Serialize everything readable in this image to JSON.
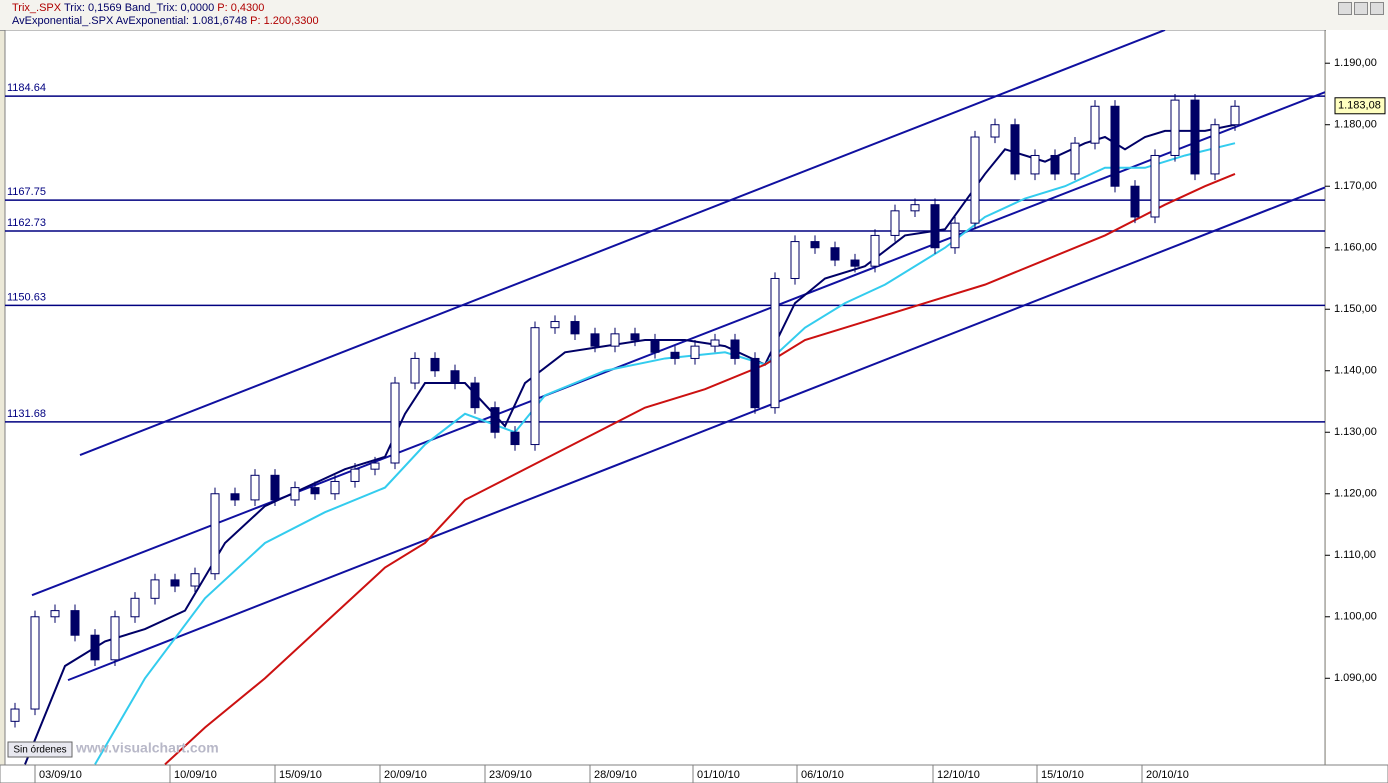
{
  "window": {
    "line1": [
      "Trix_.SPX",
      "Trix: 0,1569",
      "Band_Trix: 0,0000",
      "P: 0,4300"
    ],
    "line2": [
      "AvExponential_.SPX",
      "AvExponential: 1.081,6748",
      "P: 1.200,3300"
    ],
    "status": "Sin órdenes",
    "watermark": "www.visualchart.com"
  },
  "chart_data": {
    "type": "candlestick",
    "xlim": [
      0,
      1320
    ],
    "ylim": [
      1075.9,
      1195.4
    ],
    "xticks": [
      {
        "value": 30,
        "label": "03/09/10"
      },
      {
        "value": 165,
        "label": "10/09/10"
      },
      {
        "value": 270,
        "label": "15/09/10"
      },
      {
        "value": 375,
        "label": "20/09/10"
      },
      {
        "value": 480,
        "label": "23/09/10"
      },
      {
        "value": 585,
        "label": "28/09/10"
      },
      {
        "value": 688,
        "label": "01/10/10"
      },
      {
        "value": 792,
        "label": "06/10/10"
      },
      {
        "value": 928,
        "label": "12/10/10"
      },
      {
        "value": 1032,
        "label": "15/10/10"
      },
      {
        "value": 1137,
        "label": "20/10/10"
      }
    ],
    "yticks": [
      {
        "value": 1090,
        "label": "1.090,00"
      },
      {
        "value": 1100,
        "label": "1.100,00"
      },
      {
        "value": 1110,
        "label": "1.110,00"
      },
      {
        "value": 1120,
        "label": "1.120,00"
      },
      {
        "value": 1130,
        "label": "1.130,00"
      },
      {
        "value": 1140,
        "label": "1.140,00"
      },
      {
        "value": 1150,
        "label": "1.150,00"
      },
      {
        "value": 1160,
        "label": "1.160,00"
      },
      {
        "value": 1170,
        "label": "1.170,00"
      },
      {
        "value": 1180,
        "label": "1.180,00"
      },
      {
        "value": 1190,
        "label": "1.190,00"
      }
    ],
    "up_color": "#ffffff",
    "down_color": "#000066",
    "edge_color": "#000066",
    "x": [
      10,
      30,
      50,
      70,
      90,
      110,
      130,
      150,
      170,
      190,
      210,
      230,
      250,
      270,
      290,
      310,
      330,
      350,
      370,
      390,
      410,
      430,
      450,
      470,
      490,
      510,
      530,
      550,
      570,
      590,
      610,
      630,
      650,
      670,
      690,
      710,
      730,
      750,
      770,
      790,
      810,
      830,
      850,
      870,
      890,
      910,
      930,
      950,
      970,
      990,
      1010,
      1030,
      1050,
      1070,
      1090,
      1110,
      1130,
      1150,
      1170,
      1190,
      1210,
      1230
    ],
    "open": [
      1083,
      1085,
      1100,
      1101,
      1097,
      1093,
      1100,
      1103,
      1106,
      1105,
      1107,
      1120,
      1119,
      1123,
      1119,
      1121,
      1120,
      1122,
      1124,
      1125,
      1138,
      1142,
      1140,
      1138,
      1134,
      1130,
      1128,
      1147,
      1148,
      1146,
      1144,
      1146,
      1145,
      1143,
      1142,
      1144,
      1145,
      1142,
      1134,
      1155,
      1161,
      1160,
      1158,
      1157,
      1162,
      1166,
      1167,
      1160,
      1164,
      1178,
      1180,
      1172,
      1175,
      1172,
      1177,
      1183,
      1170,
      1165,
      1175,
      1184,
      1172,
      1180
    ],
    "high": [
      1086,
      1101,
      1102,
      1102,
      1098,
      1101,
      1104,
      1107,
      1107,
      1108,
      1121,
      1121,
      1124,
      1124,
      1122,
      1122,
      1123,
      1125,
      1126,
      1139,
      1143,
      1143,
      1141,
      1139,
      1135,
      1131,
      1148,
      1149,
      1149,
      1147,
      1147,
      1147,
      1146,
      1144,
      1145,
      1146,
      1146,
      1143,
      1156,
      1162,
      1162,
      1161,
      1159,
      1163,
      1167,
      1168,
      1168,
      1165,
      1179,
      1181,
      1181,
      1176,
      1176,
      1178,
      1184,
      1184,
      1171,
      1176,
      1185,
      1185,
      1181,
      1184
    ],
    "low": [
      1082,
      1084,
      1099,
      1096,
      1092,
      1092,
      1099,
      1102,
      1104,
      1104,
      1106,
      1118,
      1118,
      1118,
      1118,
      1119,
      1119,
      1121,
      1123,
      1124,
      1137,
      1139,
      1137,
      1133,
      1129,
      1127,
      1127,
      1146,
      1145,
      1143,
      1143,
      1144,
      1142,
      1141,
      1141,
      1143,
      1141,
      1133,
      1133,
      1154,
      1159,
      1157,
      1156,
      1156,
      1161,
      1165,
      1159,
      1159,
      1163,
      1177,
      1171,
      1171,
      1171,
      1171,
      1176,
      1169,
      1164,
      1164,
      1174,
      1171,
      1171,
      1179
    ],
    "close": [
      1085,
      1100,
      1101,
      1097,
      1093,
      1100,
      1103,
      1106,
      1105,
      1107,
      1120,
      1119,
      1123,
      1119,
      1121,
      1120,
      1122,
      1124,
      1125,
      1138,
      1142,
      1140,
      1138,
      1134,
      1130,
      1128,
      1147,
      1148,
      1146,
      1144,
      1146,
      1145,
      1143,
      1142,
      1144,
      1145,
      1142,
      1134,
      1155,
      1161,
      1160,
      1158,
      1157,
      1162,
      1166,
      1167,
      1160,
      1164,
      1178,
      1180,
      1172,
      1175,
      1172,
      1177,
      1183,
      1170,
      1165,
      1175,
      1184,
      1172,
      1180,
      1183
    ],
    "series": [
      {
        "color": "#000066",
        "x": [
          20,
          60,
          100,
          140,
          180,
          220,
          260,
          300,
          340,
          380,
          400,
          420,
          460,
          500,
          520,
          560,
          600,
          640,
          680,
          720,
          760,
          790,
          820,
          860,
          900,
          940,
          980,
          1000,
          1040,
          1080,
          1100,
          1120,
          1140,
          1160,
          1180,
          1200,
          1230
        ],
        "values": [
          1076,
          1092,
          1096,
          1098,
          1101,
          1112,
          1118,
          1121,
          1124,
          1126,
          1133,
          1138,
          1138,
          1131,
          1138,
          1143,
          1144,
          1145,
          1145,
          1144,
          1141,
          1151,
          1155,
          1157,
          1162,
          1163,
          1172,
          1176,
          1174,
          1177,
          1178,
          1176,
          1178,
          1179,
          1179,
          1179,
          1180
        ]
      },
      {
        "color": "#33ccee",
        "x": [
          90,
          140,
          200,
          260,
          320,
          380,
          420,
          460,
          510,
          540,
          600,
          660,
          720,
          760,
          800,
          840,
          880,
          940,
          980,
          1020,
          1060,
          1100,
          1140,
          1180,
          1230
        ],
        "values": [
          1076,
          1090,
          1103,
          1112,
          1117,
          1121,
          1128,
          1133,
          1130,
          1136,
          1140,
          1142,
          1143,
          1141,
          1147,
          1151,
          1154,
          1160,
          1165,
          1168,
          1170,
          1173,
          1173,
          1175,
          1177
        ]
      },
      {
        "color": "#cc1111",
        "x": [
          160,
          200,
          260,
          320,
          380,
          420,
          460,
          520,
          580,
          640,
          700,
          760,
          800,
          860,
          920,
          980,
          1040,
          1100,
          1160,
          1200,
          1230
        ],
        "values": [
          1076,
          1082,
          1090,
          1099,
          1108,
          1112,
          1119,
          1124,
          1129,
          1134,
          1137,
          1141,
          1145,
          1148,
          1151,
          1154,
          1158,
          1162,
          1167,
          1170,
          1172
        ]
      }
    ],
    "trendline_color": "#1010a0",
    "trendlines": [
      {
        "x": [
          75,
          1160
        ],
        "values": [
          1126.3,
          1195.4
        ]
      },
      {
        "x": [
          27,
          1320
        ],
        "values": [
          1103.5,
          1185.3
        ]
      },
      {
        "x": [
          63,
          1320
        ],
        "values": [
          1089.7,
          1169.8
        ]
      }
    ],
    "hline_color": "#000080",
    "hlines": [
      1184.64,
      1167.75,
      1162.73,
      1150.63,
      1131.68
    ],
    "last_price": {
      "value": 1183.08,
      "label": "1.183,08"
    }
  }
}
